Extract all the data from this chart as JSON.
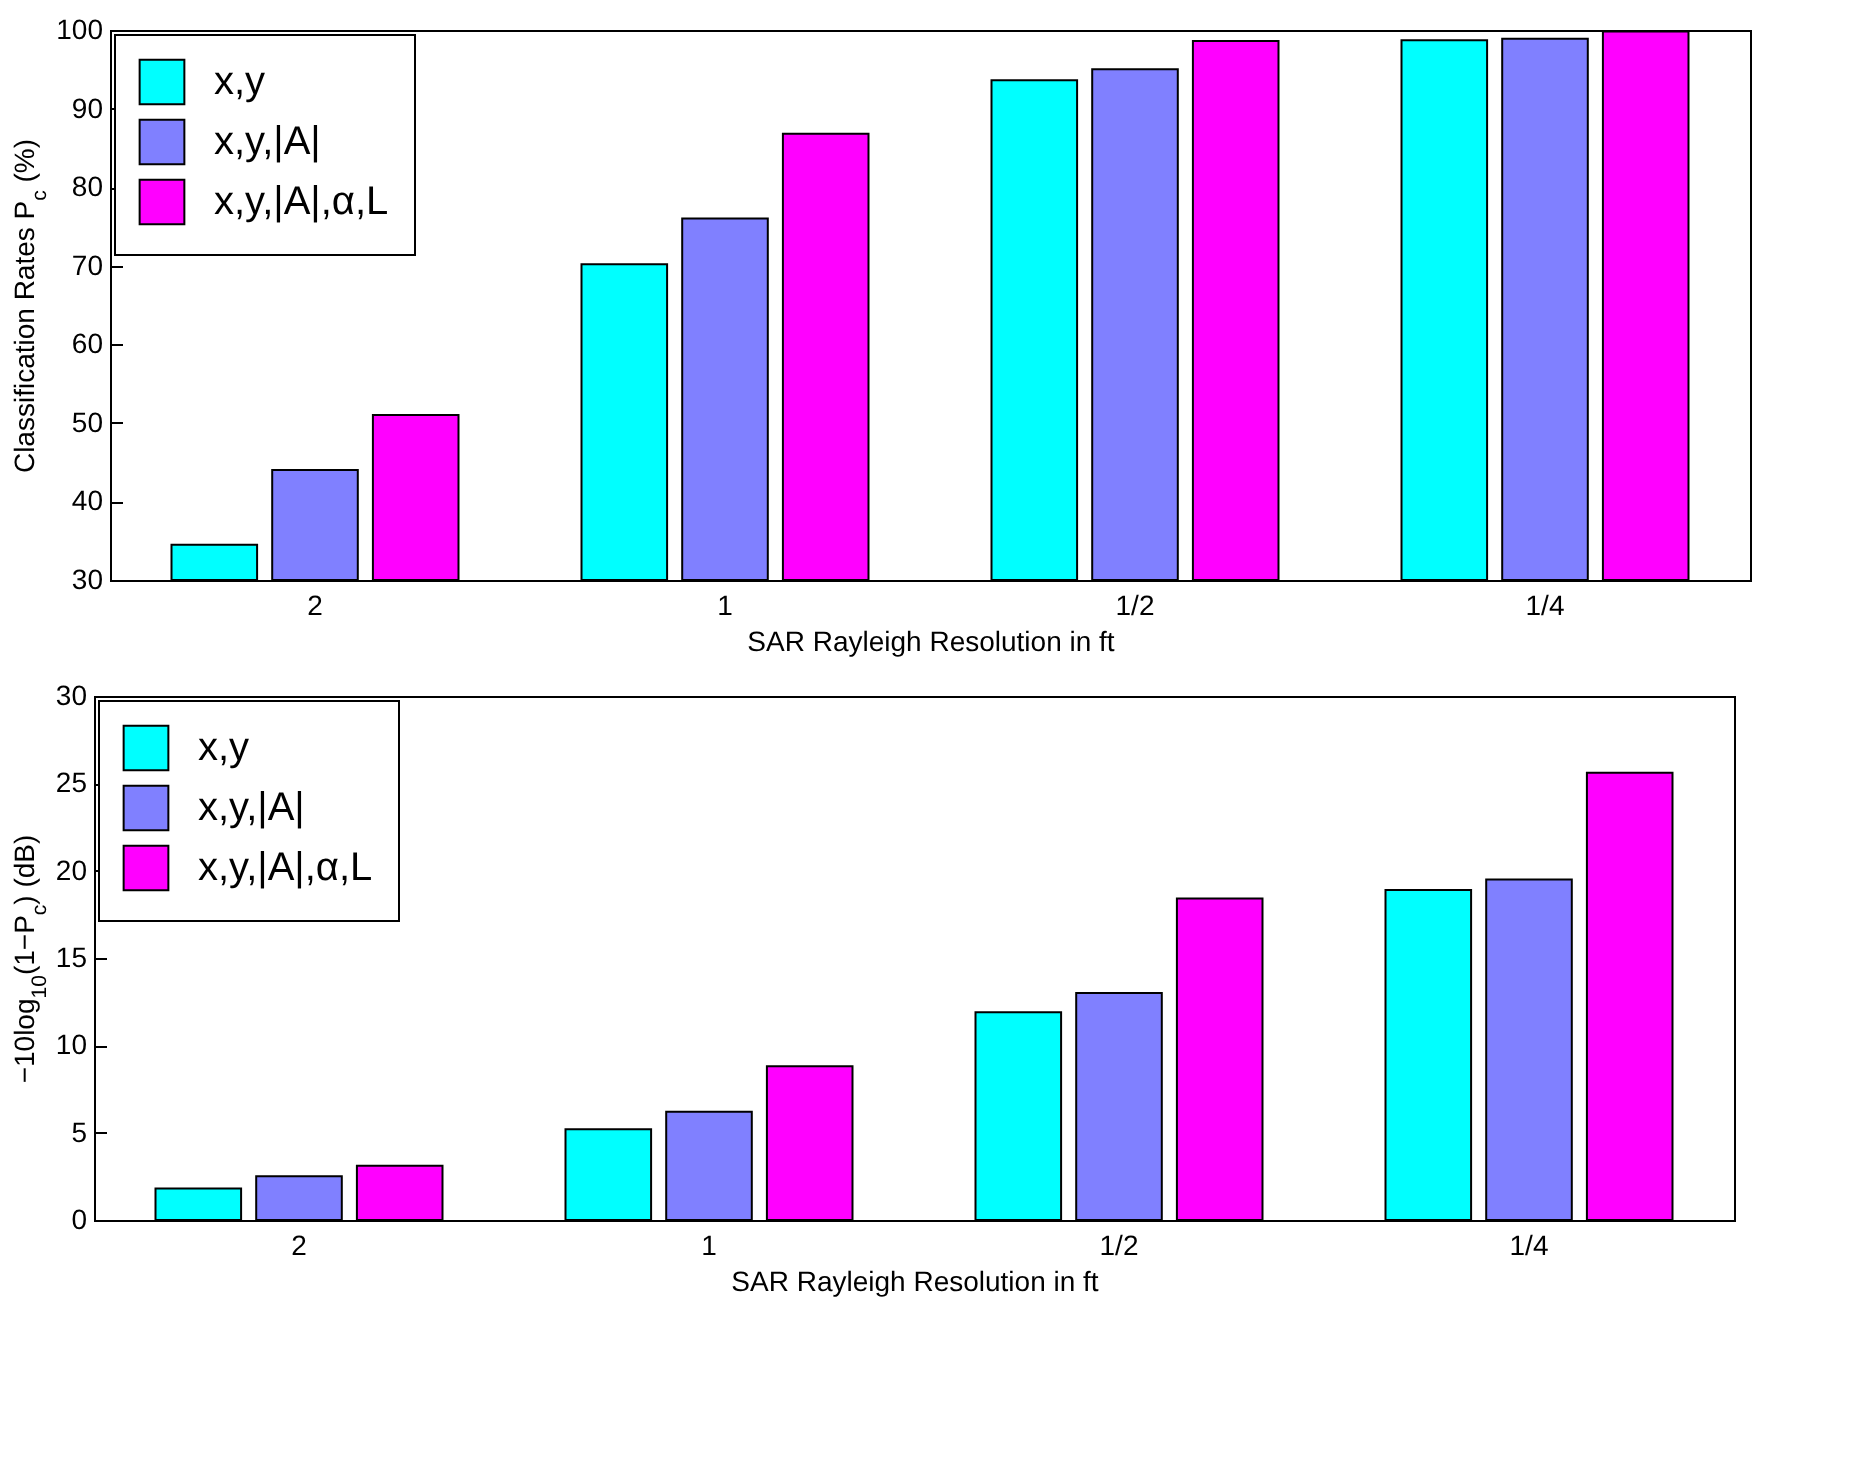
{
  "chart_data": [
    {
      "type": "bar",
      "categories": [
        "2",
        "1",
        "1/2",
        "1/4"
      ],
      "xlabel": "SAR Rayleigh Resolution in ft",
      "ylabel": "Classification Rates P$_{c}$ (%)",
      "ylim": [
        30,
        100
      ],
      "yticks": [
        30,
        40,
        50,
        60,
        70,
        80,
        90,
        100
      ],
      "grid": false,
      "legend": "top left",
      "series": [
        {
          "name": "x,y",
          "color": "#00ffff",
          "values": [
            34.5,
            70.2,
            93.6,
            98.7
          ]
        },
        {
          "name": "x,y,|A|",
          "color": "#8080ff",
          "values": [
            44,
            76,
            95,
            98.9
          ]
        },
        {
          "name": "x,y,|A|,α,L",
          "color": "#ff00ff",
          "values": [
            51,
            86.8,
            98.6,
            99.8
          ]
        }
      ]
    },
    {
      "type": "bar",
      "categories": [
        "2",
        "1",
        "1/2",
        "1/4"
      ],
      "xlabel": "SAR Rayleigh Resolution in ft",
      "ylabel": "−10log$_{10}$(1−P$_{c}$) (dB)",
      "ylim": [
        0,
        30
      ],
      "yticks": [
        0,
        5,
        10,
        15,
        20,
        25,
        30
      ],
      "grid": false,
      "legend": "top left",
      "series": [
        {
          "name": "x,y",
          "color": "#00ffff",
          "values": [
            1.8,
            5.2,
            11.9,
            18.9
          ]
        },
        {
          "name": "x,y,|A|",
          "color": "#8080ff",
          "values": [
            2.5,
            6.2,
            13,
            19.5
          ]
        },
        {
          "name": "x,y,|A|,α,L",
          "color": "#ff00ff",
          "values": [
            3.1,
            8.8,
            18.4,
            25.6
          ]
        }
      ]
    }
  ]
}
